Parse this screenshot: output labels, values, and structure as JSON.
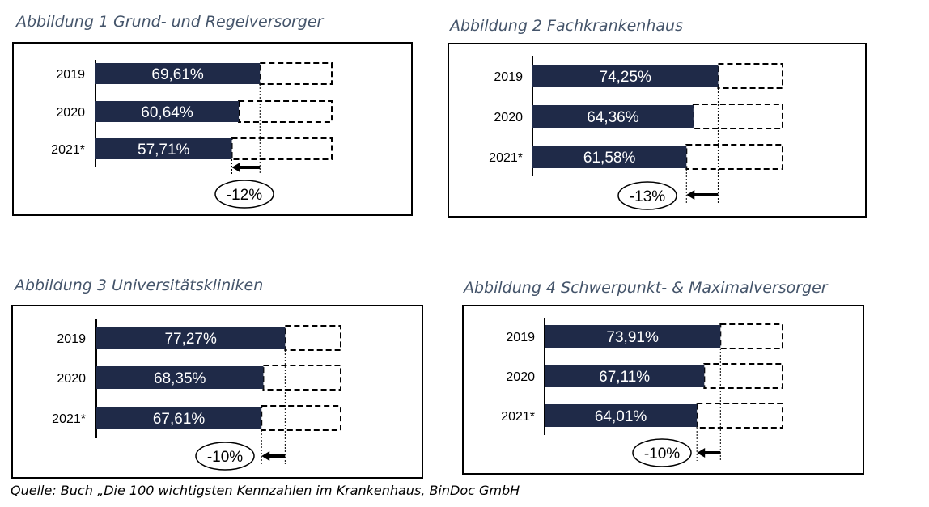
{
  "colors": {
    "bar": "#1f2a48",
    "title": "#44546a"
  },
  "source": "Quelle: Buch „Die 100 wichtigsten Kennzahlen im Krankenhaus, BinDoc GmbH",
  "chart_data": [
    {
      "type": "bar",
      "title": "Abbildung 1 Grund- und Regelversorger",
      "categories": [
        "2019",
        "2020",
        "2021*"
      ],
      "values": [
        69.61,
        60.64,
        57.71
      ],
      "labels": [
        "69,61%",
        "60,64%",
        "57,71%"
      ],
      "change_label": "-12%",
      "reference": "dashed outline = 100%"
    },
    {
      "type": "bar",
      "title": "Abbildung 2 Fachkrankenhaus",
      "categories": [
        "2019",
        "2020",
        "2021*"
      ],
      "values": [
        74.25,
        64.36,
        61.58
      ],
      "labels": [
        "74,25%",
        "64,36%",
        "61,58%"
      ],
      "change_label": "-13%",
      "reference": "dashed outline = 100%"
    },
    {
      "type": "bar",
      "title": "Abbildung 3 Universitätskliniken",
      "categories": [
        "2019",
        "2020",
        "2021*"
      ],
      "values": [
        77.27,
        68.35,
        67.61
      ],
      "labels": [
        "77,27%",
        "68,35%",
        "67,61%"
      ],
      "change_label": "-10%",
      "reference": "dashed outline = 100%"
    },
    {
      "type": "bar",
      "title": "Abbildung 4 Schwerpunkt- & Maximalversorger",
      "categories": [
        "2019",
        "2020",
        "2021*"
      ],
      "values": [
        73.91,
        67.11,
        64.01
      ],
      "labels": [
        "73,91%",
        "67,11%",
        "64,01%"
      ],
      "change_label": "-10%",
      "reference": "dashed outline = 100%"
    }
  ]
}
